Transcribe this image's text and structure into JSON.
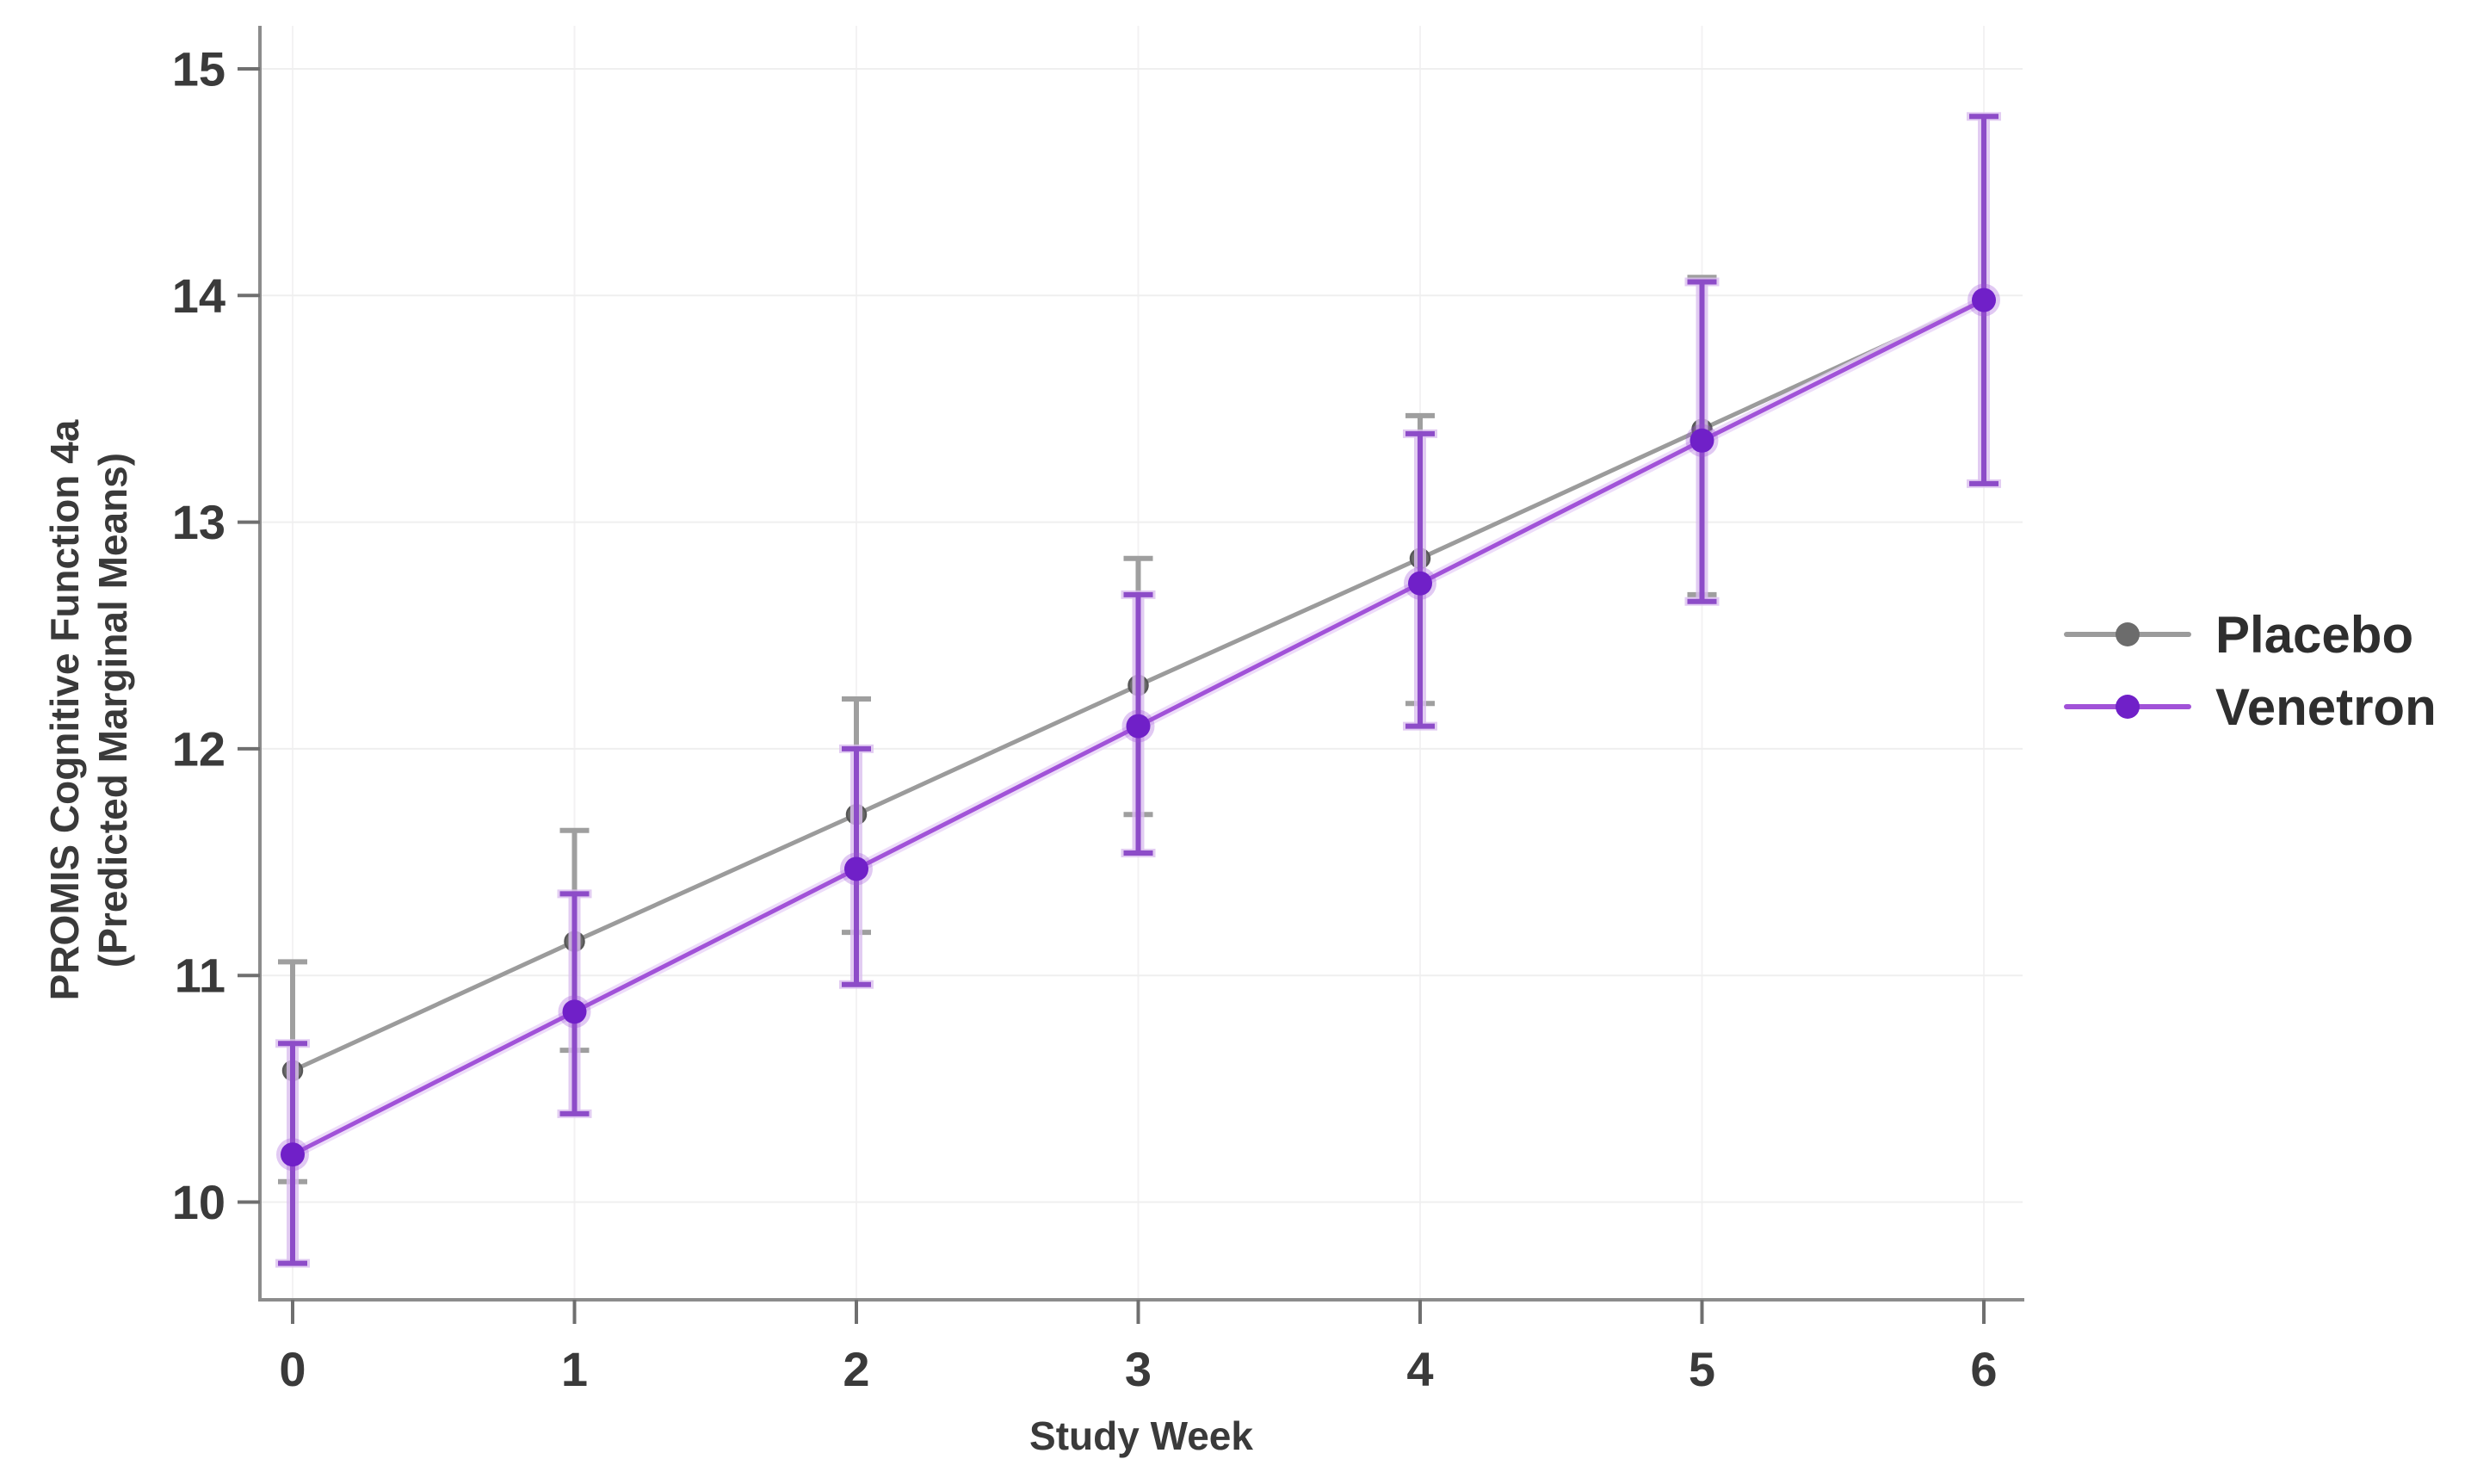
{
  "figure": {
    "background": "#ffffff",
    "axis_color": "#8c8c8c",
    "tick_color": "#6f6f6f",
    "tick_label_color": "#3a3a3a",
    "grid_color_h": "#efefef",
    "grid_color_v": "#f3f2f3"
  },
  "y_axis": {
    "title_line1": "PROMIS Cognitive Function 4a",
    "title_line2": "(Predicted Marginal Means)",
    "ticks": [
      10,
      11,
      12,
      13,
      14,
      15
    ]
  },
  "x_axis": {
    "title": "Study Week",
    "ticks": [
      0,
      1,
      2,
      3,
      4,
      5,
      6
    ]
  },
  "legend": {
    "position": "right",
    "items": [
      {
        "id": "placebo",
        "label": "Placebo",
        "line_color": "#9b9b9b",
        "marker_color": "#6c6c6c"
      },
      {
        "id": "venetron",
        "label": "Venetron",
        "line_color": "#a152d8",
        "marker_color": "#7020c8"
      }
    ]
  },
  "chart_data": {
    "type": "line",
    "title": "",
    "xlabel": "Study Week",
    "ylabel": "PROMIS Cognitive Function 4a (Predicted Marginal Means)",
    "x": [
      0,
      1,
      2,
      3,
      4,
      5,
      6
    ],
    "xlim": [
      -0.12,
      6.14
    ],
    "ylim": [
      9.57,
      15.19
    ],
    "grid": true,
    "legend_position": "right",
    "error_bars": true,
    "series": [
      {
        "name": "Placebo",
        "line_color": "#9b9b9b",
        "marker_color": "#6c6c6c",
        "marker_stroke": "#585858",
        "error_color": "#9f9f9f",
        "values": [
          10.58,
          11.15,
          11.71,
          12.28,
          12.84,
          13.41,
          13.98
        ],
        "ci_low": [
          10.09,
          10.67,
          11.19,
          11.71,
          12.2,
          12.68,
          13.17
        ],
        "ci_high": [
          11.06,
          11.64,
          12.22,
          12.84,
          13.47,
          14.08,
          14.79
        ]
      },
      {
        "name": "Venetron",
        "line_color": "#a152d8",
        "line_halo": "#e9d3f7",
        "marker_color": "#7020c8",
        "marker_halo": "rgba(154,77,214,0.30)",
        "error_color": "#8d4cc8",
        "error_halo": "#dcc0f0",
        "values": [
          10.21,
          10.84,
          11.47,
          12.1,
          12.73,
          13.36,
          13.98
        ],
        "ci_low": [
          9.73,
          10.39,
          10.96,
          11.54,
          12.1,
          12.65,
          13.17
        ],
        "ci_high": [
          10.7,
          11.36,
          12.0,
          12.68,
          13.39,
          14.06,
          14.79
        ]
      }
    ]
  }
}
